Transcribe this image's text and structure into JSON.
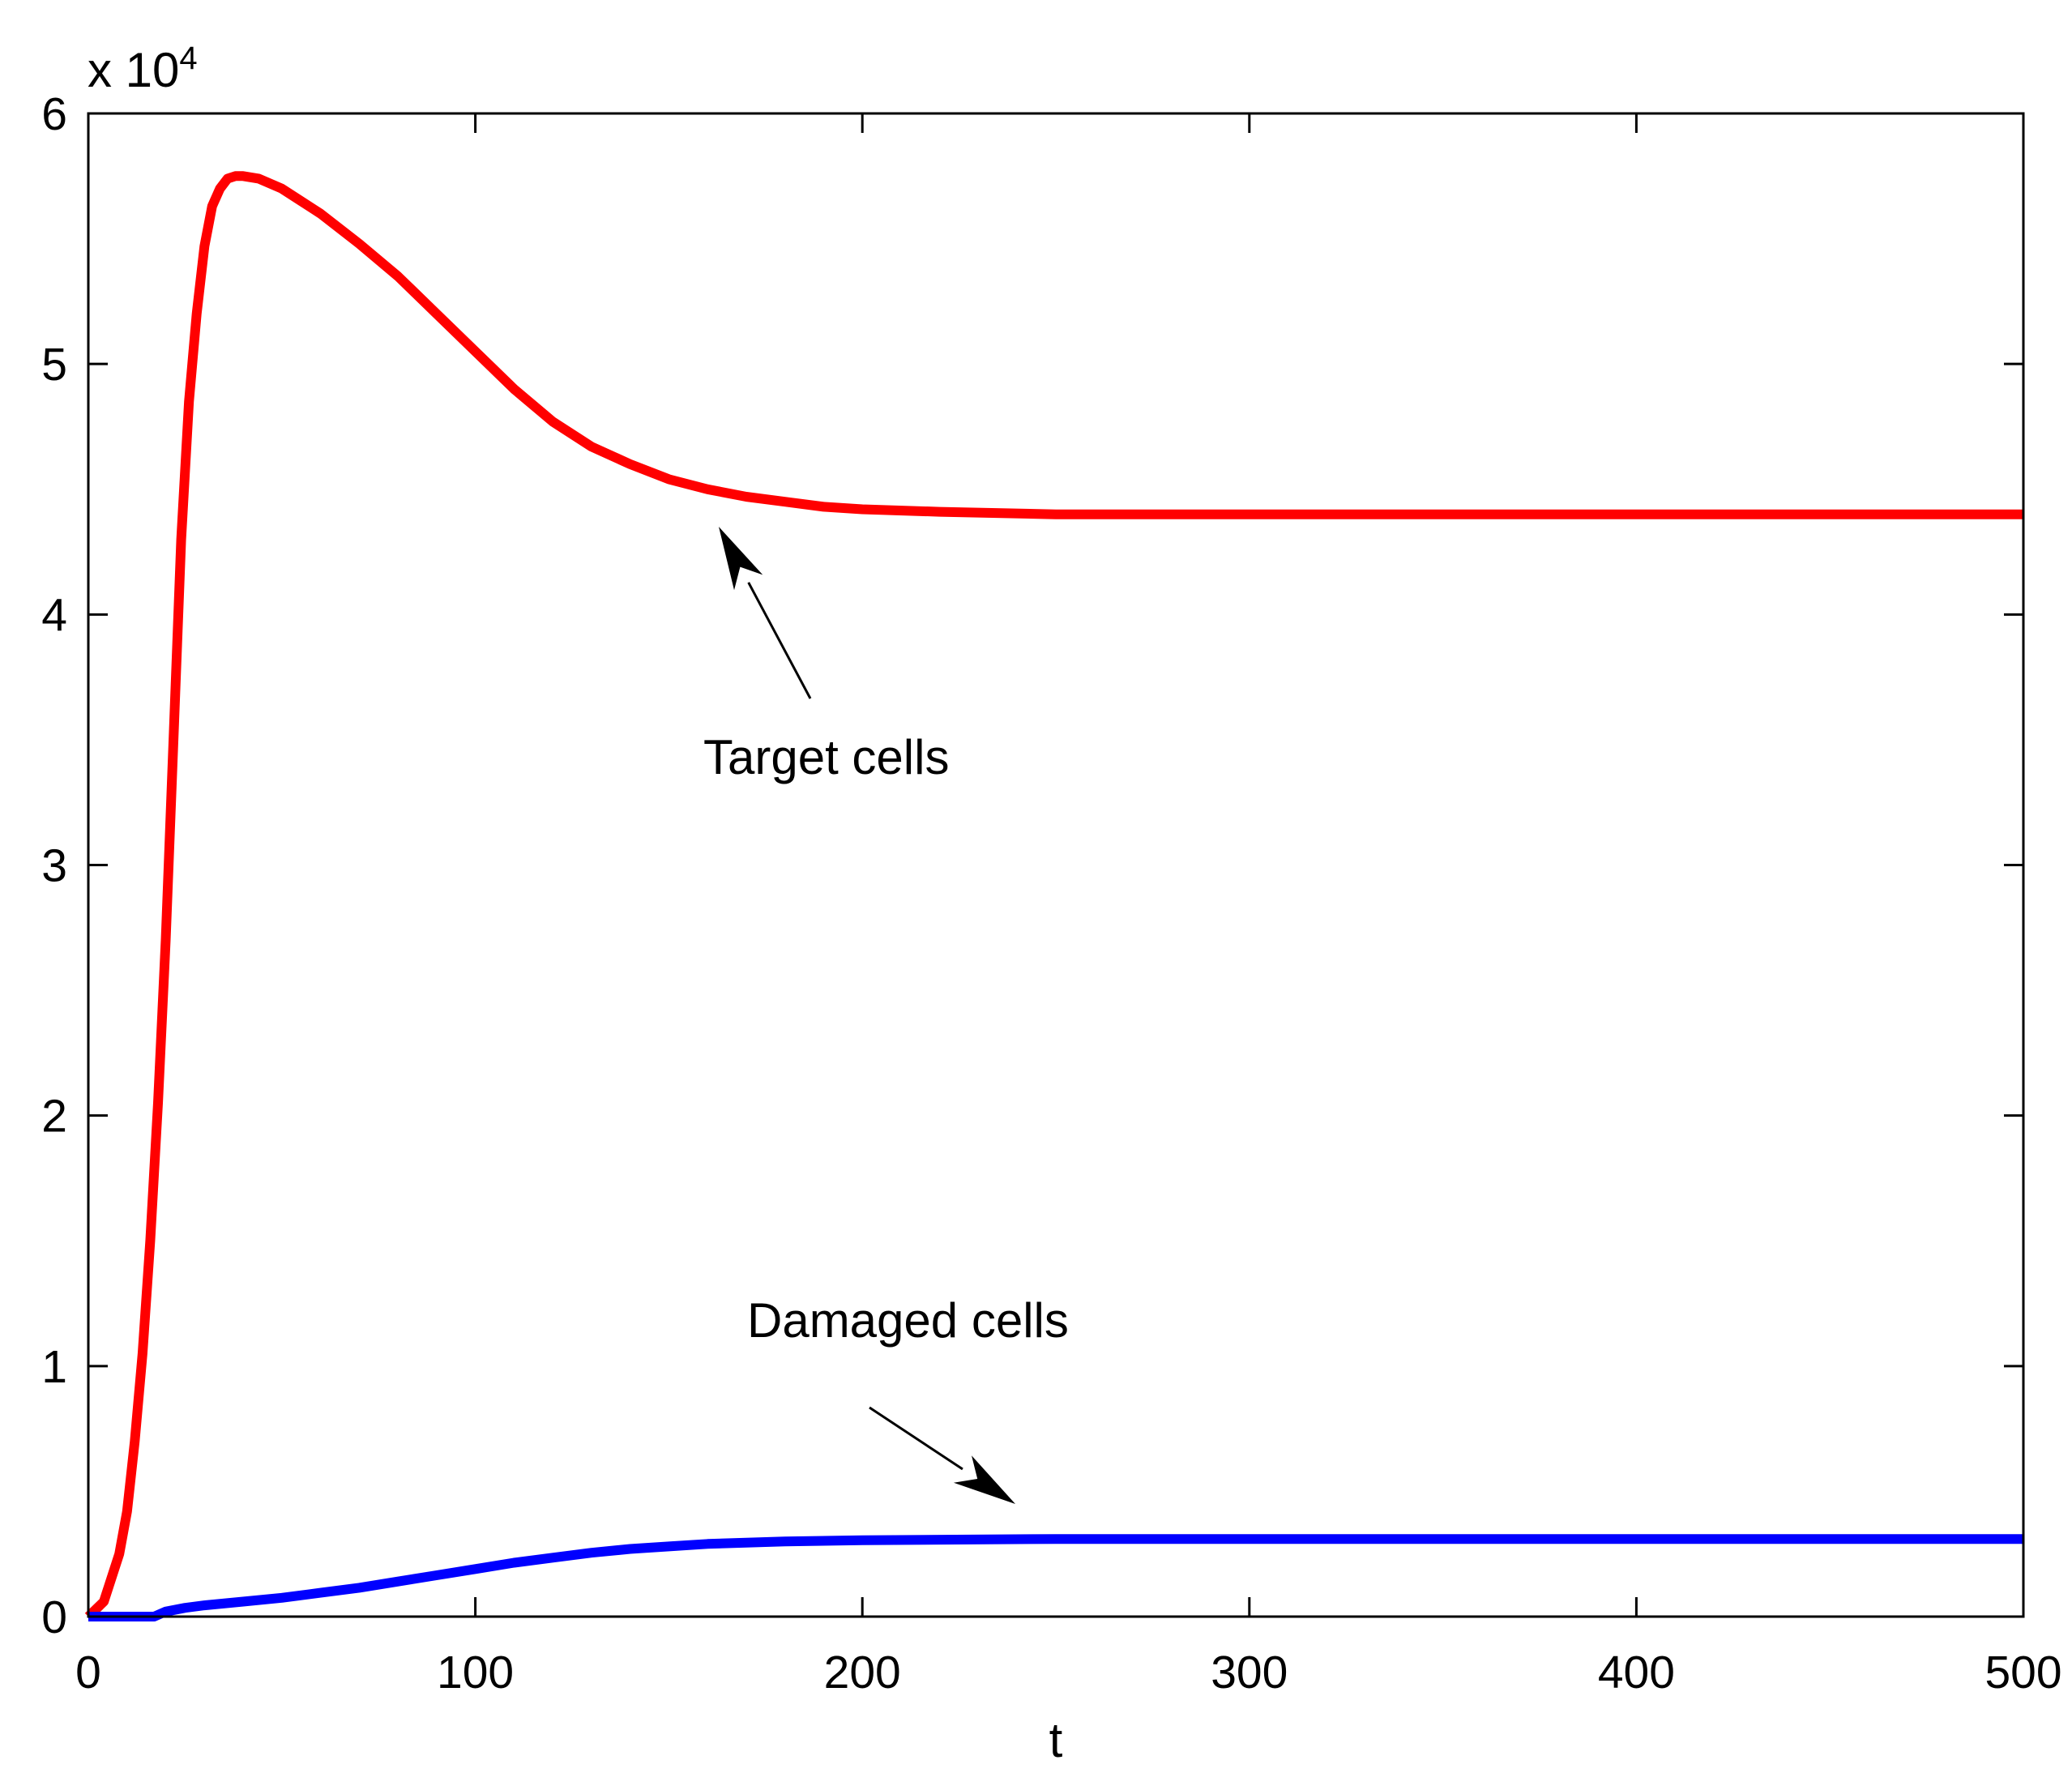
{
  "chart_data": {
    "type": "line",
    "title": "",
    "xlabel": "t",
    "ylabel": "",
    "xlim": [
      0,
      500
    ],
    "ylim": [
      0,
      60000
    ],
    "xticks": [
      0,
      100,
      200,
      300,
      400,
      500
    ],
    "xtick_labels": [
      "0",
      "100",
      "200",
      "300",
      "400",
      "500"
    ],
    "yticks": [
      0,
      10000,
      20000,
      30000,
      40000,
      50000,
      60000
    ],
    "ytick_labels": [
      "0",
      "1",
      "2",
      "3",
      "4",
      "5",
      "6"
    ],
    "y_multiplier": {
      "base": "x 10",
      "exponent": "4"
    },
    "grid": false,
    "series": [
      {
        "name": "Target cells",
        "color": "#ff0000",
        "x": [
          0,
          4,
          8,
          10,
          12,
          14,
          16,
          18,
          20,
          22,
          24,
          26,
          28,
          30,
          32,
          34,
          36,
          38,
          40,
          44,
          50,
          60,
          70,
          80,
          90,
          100,
          110,
          120,
          130,
          140,
          150,
          160,
          170,
          180,
          190,
          200,
          220,
          250,
          300,
          400,
          500
        ],
        "values": [
          0,
          600,
          2500,
          4200,
          7000,
          10500,
          15000,
          20500,
          27000,
          35000,
          43000,
          48500,
          52000,
          54700,
          56300,
          57000,
          57400,
          57500,
          57500,
          57400,
          57000,
          56000,
          54800,
          53500,
          52000,
          50500,
          49000,
          47700,
          46700,
          46000,
          45400,
          45000,
          44700,
          44500,
          44300,
          44200,
          44100,
          44000,
          44000,
          44000,
          44000
        ]
      },
      {
        "name": "Damaged cells",
        "color": "#0000ff",
        "x": [
          0,
          10,
          17,
          20,
          25,
          30,
          40,
          50,
          60,
          70,
          80,
          90,
          100,
          110,
          120,
          130,
          140,
          150,
          160,
          180,
          200,
          250,
          300,
          400,
          500
        ],
        "values": [
          0,
          0,
          0,
          200,
          350,
          450,
          600,
          750,
          950,
          1150,
          1400,
          1650,
          1900,
          2150,
          2350,
          2550,
          2700,
          2800,
          2900,
          3000,
          3050,
          3100,
          3100,
          3100,
          3100
        ]
      }
    ],
    "annotations": [
      {
        "text": "Target cells",
        "points_to": "Target cells",
        "target_x": 162,
        "target_y": 44000
      },
      {
        "text": "Damaged cells",
        "points_to": "Damaged cells",
        "target_x": 240,
        "target_y": 4500
      }
    ]
  }
}
